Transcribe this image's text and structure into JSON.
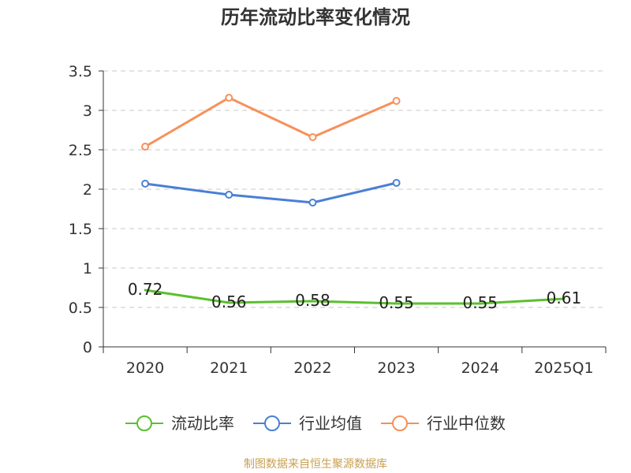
{
  "chart_data": {
    "type": "line",
    "title": "历年流动比率变化情况",
    "categories": [
      "2020",
      "2021",
      "2022",
      "2023",
      "2024",
      "2025Q1"
    ],
    "xlabel": "",
    "ylabel": "",
    "ylim": [
      0,
      3.5
    ],
    "yticks": [
      "0",
      "0.5",
      "1",
      "1.5",
      "2",
      "2.5",
      "3",
      "3.5"
    ],
    "grid": true,
    "legend_position": "bottom",
    "series": [
      {
        "name": "流动比率",
        "color": "#5cbf2f",
        "values": [
          0.72,
          0.56,
          0.58,
          0.55,
          0.55,
          0.61
        ],
        "labels": [
          "0.72",
          "0.56",
          "0.58",
          "0.55",
          "0.55",
          "0.61"
        ],
        "show_markers": false,
        "show_labels": true
      },
      {
        "name": "行业均值",
        "color": "#4a7fd6",
        "values": [
          2.07,
          1.93,
          1.83,
          2.08,
          null,
          null
        ],
        "show_markers": true,
        "show_labels": false
      },
      {
        "name": "行业中位数",
        "color": "#f7905a",
        "values": [
          2.54,
          3.16,
          2.66,
          3.12,
          null,
          null
        ],
        "show_markers": true,
        "show_labels": false
      }
    ]
  },
  "footer": {
    "source": "制图数据来自恒生聚源数据库"
  }
}
